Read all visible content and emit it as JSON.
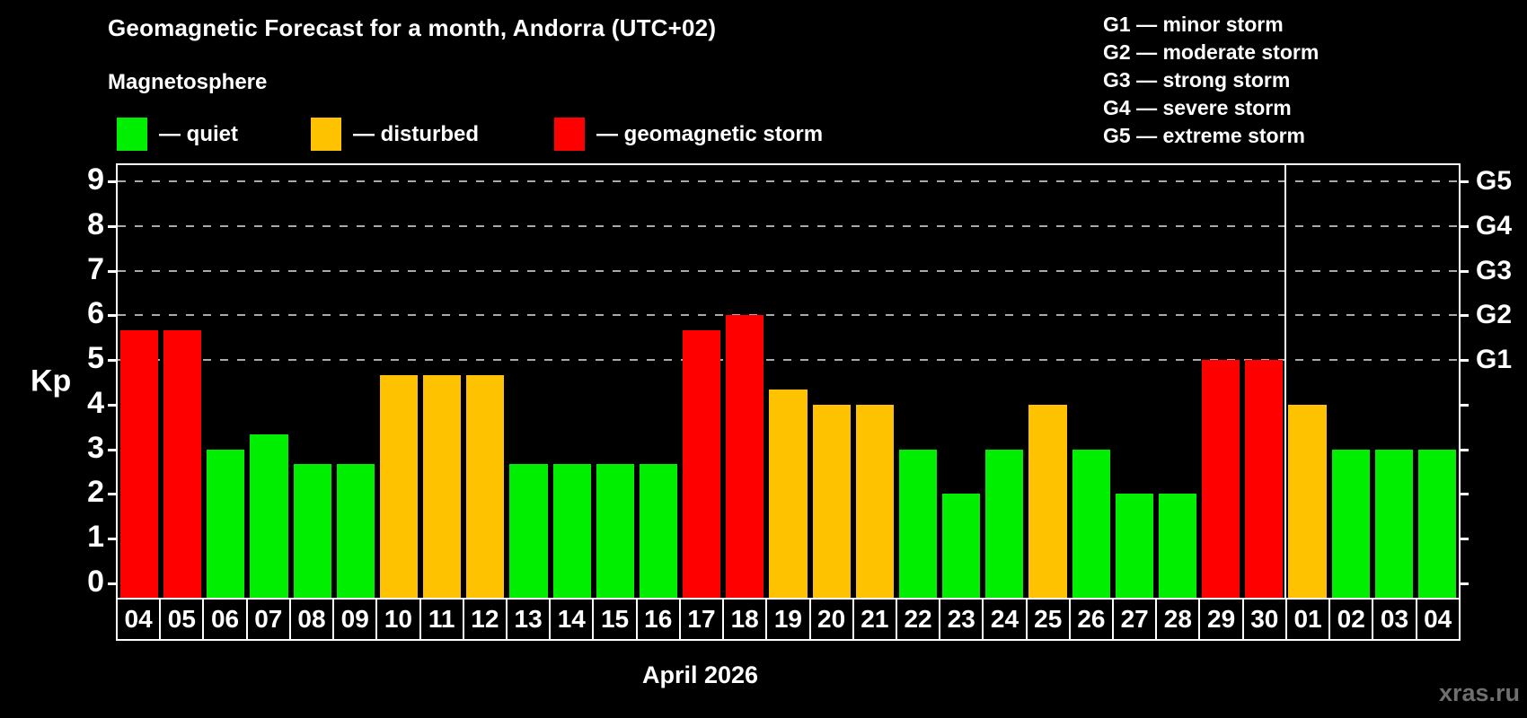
{
  "header": {
    "title": "Geomagnetic Forecast for a month, Andorra (UTC+02)",
    "subtitle": "Magnetosphere"
  },
  "legend": {
    "items": [
      {
        "name": "quiet",
        "color": "#00ee00",
        "label": "— quiet"
      },
      {
        "name": "disturbed",
        "color": "#ffc200",
        "label": "— disturbed"
      },
      {
        "name": "storm",
        "color": "#ff0000",
        "label": "— geomagnetic storm"
      }
    ]
  },
  "g_legend": [
    "G1 — minor storm",
    "G2 — moderate storm",
    "G3 — strong storm",
    "G4 — severe storm",
    "G5 — extreme storm"
  ],
  "chart_data": {
    "type": "bar",
    "title": "Geomagnetic Forecast for a month, Andorra (UTC+02)",
    "ylabel": "Kp",
    "xlabel": "April 2026",
    "categories": [
      "04",
      "05",
      "06",
      "07",
      "08",
      "09",
      "10",
      "11",
      "12",
      "13",
      "14",
      "15",
      "16",
      "17",
      "18",
      "19",
      "20",
      "21",
      "22",
      "23",
      "24",
      "25",
      "26",
      "27",
      "28",
      "29",
      "30",
      "01",
      "02",
      "03",
      "04"
    ],
    "values": [
      5.67,
      5.67,
      3.0,
      3.33,
      2.67,
      2.67,
      4.67,
      4.67,
      4.67,
      2.67,
      2.67,
      2.67,
      2.67,
      5.67,
      6.0,
      4.33,
      4.0,
      4.0,
      3.0,
      2.0,
      3.0,
      4.0,
      3.0,
      2.0,
      2.0,
      5.0,
      5.0,
      4.0,
      3.0,
      3.0,
      3.0
    ],
    "states": [
      "storm",
      "storm",
      "quiet",
      "quiet",
      "quiet",
      "quiet",
      "disturbed",
      "disturbed",
      "disturbed",
      "quiet",
      "quiet",
      "quiet",
      "quiet",
      "storm",
      "storm",
      "disturbed",
      "disturbed",
      "disturbed",
      "quiet",
      "quiet",
      "quiet",
      "disturbed",
      "quiet",
      "quiet",
      "quiet",
      "storm",
      "storm",
      "disturbed",
      "quiet",
      "quiet",
      "quiet"
    ],
    "state_colors": {
      "quiet": "#00ee00",
      "disturbed": "#ffc200",
      "storm": "#ff0000"
    },
    "ylim": [
      -0.32,
      9.36
    ],
    "yticks": [
      0,
      1,
      2,
      3,
      4,
      5,
      6,
      7,
      8,
      9
    ],
    "gridlines_at": [
      5,
      6,
      7,
      8,
      9
    ],
    "grid_style": "dashed-horizontal",
    "legend_position": "top-left",
    "right_axis_labels": [
      {
        "kp": 5,
        "label": "G1"
      },
      {
        "kp": 6,
        "label": "G2"
      },
      {
        "kp": 7,
        "label": "G3"
      },
      {
        "kp": 8,
        "label": "G4"
      },
      {
        "kp": 9,
        "label": "G5"
      }
    ],
    "month_separator_after_index": 26
  },
  "footer": {
    "watermark": "xras.ru"
  }
}
